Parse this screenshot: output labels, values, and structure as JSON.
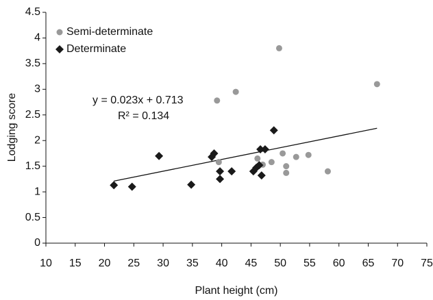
{
  "chart_data": {
    "type": "scatter",
    "x_label": "Plant height (cm)",
    "y_label": "Lodging score",
    "xlim": [
      10,
      75
    ],
    "xticks": [
      10,
      15,
      20,
      25,
      30,
      35,
      40,
      45,
      50,
      55,
      60,
      65,
      70,
      75
    ],
    "ylim": [
      0,
      4.5
    ],
    "yticks": [
      0,
      0.5,
      1,
      1.5,
      2,
      2.5,
      3,
      3.5,
      4,
      4.5
    ],
    "grid": false,
    "legend": "upper-left",
    "series": [
      {
        "name": "Semi-determinate",
        "color": "#999999",
        "marker": "circle",
        "x": [
          39.2,
          42.4,
          49.8,
          66.5,
          39.5,
          46.1,
          47.0,
          48.5,
          50.4,
          52.7,
          51.0,
          51.0,
          54.8,
          58.1
        ],
        "values": [
          2.78,
          2.95,
          3.8,
          3.1,
          1.58,
          1.65,
          1.53,
          1.58,
          1.75,
          1.68,
          1.5,
          1.37,
          1.72,
          1.4
        ]
      },
      {
        "name": "Determinate",
        "color": "#1a1a1a",
        "marker": "diamond",
        "x": [
          21.6,
          24.7,
          29.3,
          34.8,
          38.3,
          38.7,
          39.7,
          39.7,
          41.7,
          45.4,
          45.9,
          46.4,
          46.6,
          47.4,
          46.8,
          48.9
        ],
        "values": [
          1.13,
          1.1,
          1.7,
          1.14,
          1.68,
          1.75,
          1.4,
          1.25,
          1.4,
          1.4,
          1.47,
          1.52,
          1.83,
          1.83,
          1.32,
          2.2
        ]
      }
    ],
    "trendline": {
      "color": "#111111",
      "x": [
        21.6,
        66.5
      ],
      "values": [
        1.21,
        2.24
      ]
    },
    "annotations": [
      "y = 0.023x + 0.713",
      "R² = 0.134"
    ]
  }
}
